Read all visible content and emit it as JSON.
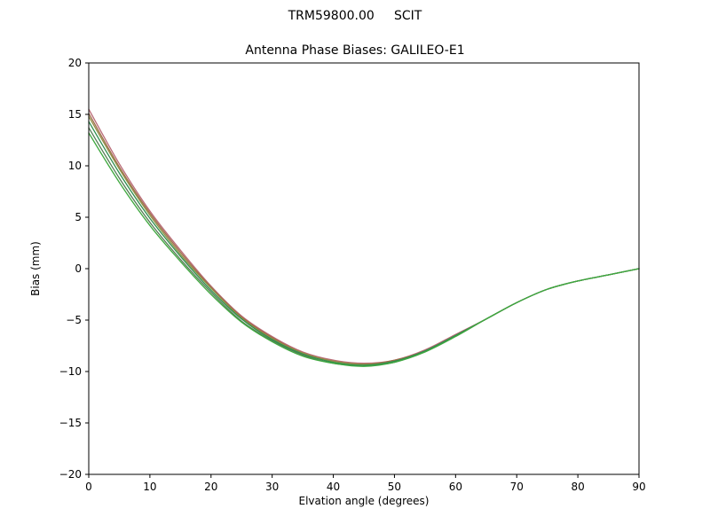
{
  "figure": {
    "suptitle": "TRM59800.00     SCIT",
    "title": "Antenna Phase Biases: GALILEO-E1"
  },
  "chart_data": {
    "type": "line",
    "suptitle": "TRM59800.00     SCIT",
    "title": "Antenna Phase Biases: GALILEO-E1",
    "xlabel": "Elvation angle (degrees)",
    "ylabel": "Bias (mm)",
    "xlim": [
      0,
      90
    ],
    "ylim": [
      -20,
      20
    ],
    "xticks": [
      0,
      10,
      20,
      30,
      40,
      50,
      60,
      70,
      80,
      90
    ],
    "xtick_labels": [
      "0",
      "10",
      "20",
      "30",
      "40",
      "50",
      "60",
      "70",
      "80",
      "90"
    ],
    "yticks": [
      -20,
      -15,
      -10,
      -5,
      0,
      5,
      10,
      15,
      20
    ],
    "ytick_labels": [
      "−20",
      "−15",
      "−10",
      "−5",
      "0",
      "5",
      "10",
      "15",
      "20"
    ],
    "grid": false,
    "legend": "none",
    "x": [
      0,
      5,
      10,
      15,
      20,
      25,
      30,
      35,
      40,
      45,
      50,
      55,
      60,
      65,
      70,
      75,
      80,
      85,
      90
    ],
    "series": [
      {
        "name": "1",
        "color": "#b96a76",
        "values": [
          15.5,
          10.2,
          5.6,
          1.8,
          -1.7,
          -4.6,
          -6.6,
          -8.1,
          -8.9,
          -9.2,
          -8.9,
          -7.9,
          -6.4,
          -4.9,
          -3.3,
          -2.0,
          -1.2,
          -0.6,
          0.0
        ]
      },
      {
        "name": "2",
        "color": "#9e6b4a",
        "values": [
          15.1,
          9.9,
          5.4,
          1.6,
          -1.8,
          -4.7,
          -6.7,
          -8.2,
          -9.0,
          -9.3,
          -8.9,
          -8.0,
          -6.5,
          -4.9,
          -3.3,
          -2.0,
          -1.2,
          -0.6,
          0.0
        ]
      },
      {
        "name": "3",
        "color": "#8f8f45",
        "values": [
          14.8,
          9.7,
          5.2,
          1.4,
          -1.9,
          -4.8,
          -6.8,
          -8.2,
          -9.0,
          -9.3,
          -9.0,
          -8.0,
          -6.5,
          -4.9,
          -3.3,
          -2.0,
          -1.2,
          -0.6,
          0.0
        ]
      },
      {
        "name": "4",
        "color": "#557d55",
        "values": [
          13.7,
          8.8,
          4.5,
          0.9,
          -2.3,
          -5.1,
          -7.0,
          -8.4,
          -9.2,
          -9.4,
          -9.1,
          -8.0,
          -6.5,
          -4.9,
          -3.3,
          -2.0,
          -1.2,
          -0.6,
          0.0
        ]
      },
      {
        "name": "5",
        "color": "#2f8f4e",
        "values": [
          14.3,
          9.3,
          4.9,
          1.2,
          -2.1,
          -4.9,
          -6.9,
          -8.3,
          -9.1,
          -9.4,
          -9.0,
          -8.0,
          -6.5,
          -4.9,
          -3.3,
          -2.0,
          -1.2,
          -0.6,
          0.0
        ]
      },
      {
        "name": "6",
        "color": "#3fa83f",
        "values": [
          13.2,
          8.4,
          4.2,
          0.7,
          -2.5,
          -5.2,
          -7.1,
          -8.5,
          -9.2,
          -9.5,
          -9.1,
          -8.1,
          -6.6,
          -4.9,
          -3.3,
          -2.0,
          -1.2,
          -0.6,
          0.0
        ]
      }
    ]
  }
}
